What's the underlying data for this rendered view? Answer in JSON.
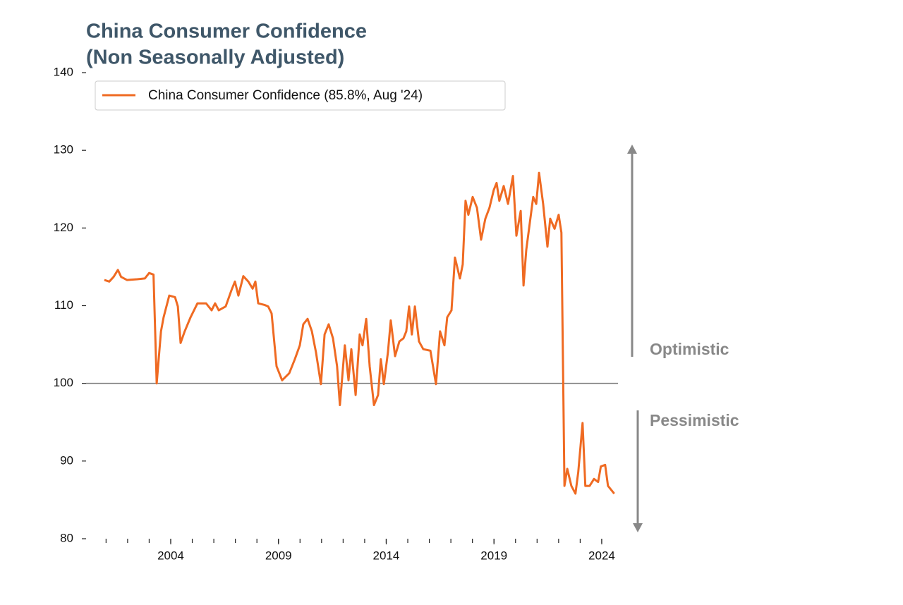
{
  "chart_data": {
    "type": "line",
    "title": "China Consumer Confidence",
    "subtitle": "(Non Seasonally Adjusted)",
    "annotations": [
      "Optimistic",
      "Pessimistic"
    ],
    "reference_line": 100,
    "xlim": [
      2000.0,
      2025.0
    ],
    "xticks": [
      2004,
      2009,
      2014,
      2019,
      2024
    ],
    "xminor_ticks": [
      2001,
      2002,
      2003,
      2004,
      2005,
      2006,
      2007,
      2008,
      2009,
      2010,
      2011,
      2012,
      2013,
      2014,
      2015,
      2016,
      2017,
      2018,
      2019,
      2020,
      2021,
      2022,
      2023,
      2024
    ],
    "ylim": [
      80,
      140
    ],
    "yticks": [
      80,
      90,
      100,
      110,
      120,
      130,
      140
    ],
    "legend": "upper left",
    "x": [
      2000.92,
      2001.15,
      2001.35,
      2001.55,
      2001.7,
      2001.97,
      2002.45,
      2002.8,
      2003.0,
      2003.2,
      2003.35,
      2003.55,
      2003.67,
      2003.93,
      2004.2,
      2004.33,
      2004.46,
      2004.65,
      2004.92,
      2005.24,
      2005.64,
      2005.9,
      2006.06,
      2006.23,
      2006.55,
      2006.82,
      2006.98,
      2007.14,
      2007.37,
      2007.6,
      2007.8,
      2007.93,
      2008.06,
      2008.35,
      2008.52,
      2008.68,
      2008.91,
      2009.17,
      2009.5,
      2009.76,
      2009.99,
      2010.15,
      2010.35,
      2010.55,
      2010.74,
      2010.97,
      2011.14,
      2011.33,
      2011.53,
      2011.72,
      2011.85,
      2012.08,
      2012.25,
      2012.38,
      2012.58,
      2012.77,
      2012.9,
      2013.07,
      2013.23,
      2013.43,
      2013.62,
      2013.75,
      2013.89,
      2014.08,
      2014.21,
      2014.41,
      2014.61,
      2014.8,
      2014.93,
      2015.06,
      2015.19,
      2015.33,
      2015.52,
      2015.72,
      2016.05,
      2016.31,
      2016.5,
      2016.7,
      2016.83,
      2017.03,
      2017.19,
      2017.42,
      2017.55,
      2017.68,
      2017.81,
      2018.01,
      2018.21,
      2018.4,
      2018.6,
      2018.79,
      2018.99,
      2019.12,
      2019.25,
      2019.45,
      2019.65,
      2019.88,
      2020.04,
      2020.24,
      2020.37,
      2020.5,
      2020.69,
      2020.82,
      2020.96,
      2021.09,
      2021.28,
      2021.48,
      2021.61,
      2021.81,
      2022.0,
      2022.13,
      2022.27,
      2022.4,
      2022.59,
      2022.78,
      2022.91,
      2023.11,
      2023.24,
      2023.44,
      2023.64,
      2023.83,
      2023.96,
      2024.16,
      2024.29,
      2024.58
    ],
    "series": [
      {
        "name": "China Consumer Confidence (85.8%, Aug '24)",
        "color": "#ef6a22",
        "values": [
          113.3,
          113.1,
          113.7,
          114.6,
          113.7,
          113.3,
          113.4,
          113.5,
          114.2,
          114.0,
          100.0,
          106.7,
          108.5,
          111.3,
          111.1,
          109.9,
          105.2,
          106.7,
          108.5,
          110.3,
          110.3,
          109.4,
          110.3,
          109.4,
          109.9,
          112.0,
          113.1,
          111.3,
          113.8,
          113.1,
          112.2,
          113.1,
          110.3,
          110.1,
          109.9,
          109.0,
          102.2,
          100.4,
          101.3,
          103.1,
          104.9,
          107.6,
          108.3,
          106.7,
          104.0,
          99.9,
          106.3,
          107.6,
          105.8,
          102.2,
          97.2,
          104.9,
          100.4,
          104.4,
          98.5,
          106.3,
          104.9,
          108.3,
          102.2,
          97.2,
          98.5,
          103.1,
          99.9,
          104.0,
          108.1,
          103.5,
          105.4,
          105.8,
          106.7,
          109.9,
          106.3,
          109.9,
          105.4,
          104.4,
          104.2,
          99.9,
          106.7,
          104.9,
          108.5,
          109.4,
          116.2,
          113.5,
          115.3,
          123.5,
          121.7,
          124.0,
          122.6,
          118.5,
          121.2,
          122.6,
          124.9,
          125.8,
          123.5,
          125.4,
          123.1,
          126.7,
          119.0,
          122.2,
          112.6,
          117.2,
          121.2,
          124.0,
          123.1,
          127.1,
          123.1,
          117.6,
          121.2,
          119.9,
          121.7,
          119.4,
          86.8,
          89.0,
          86.8,
          85.8,
          88.6,
          94.9,
          86.8,
          86.8,
          87.7,
          87.3,
          89.3,
          89.5,
          86.8,
          85.8
        ]
      }
    ]
  }
}
